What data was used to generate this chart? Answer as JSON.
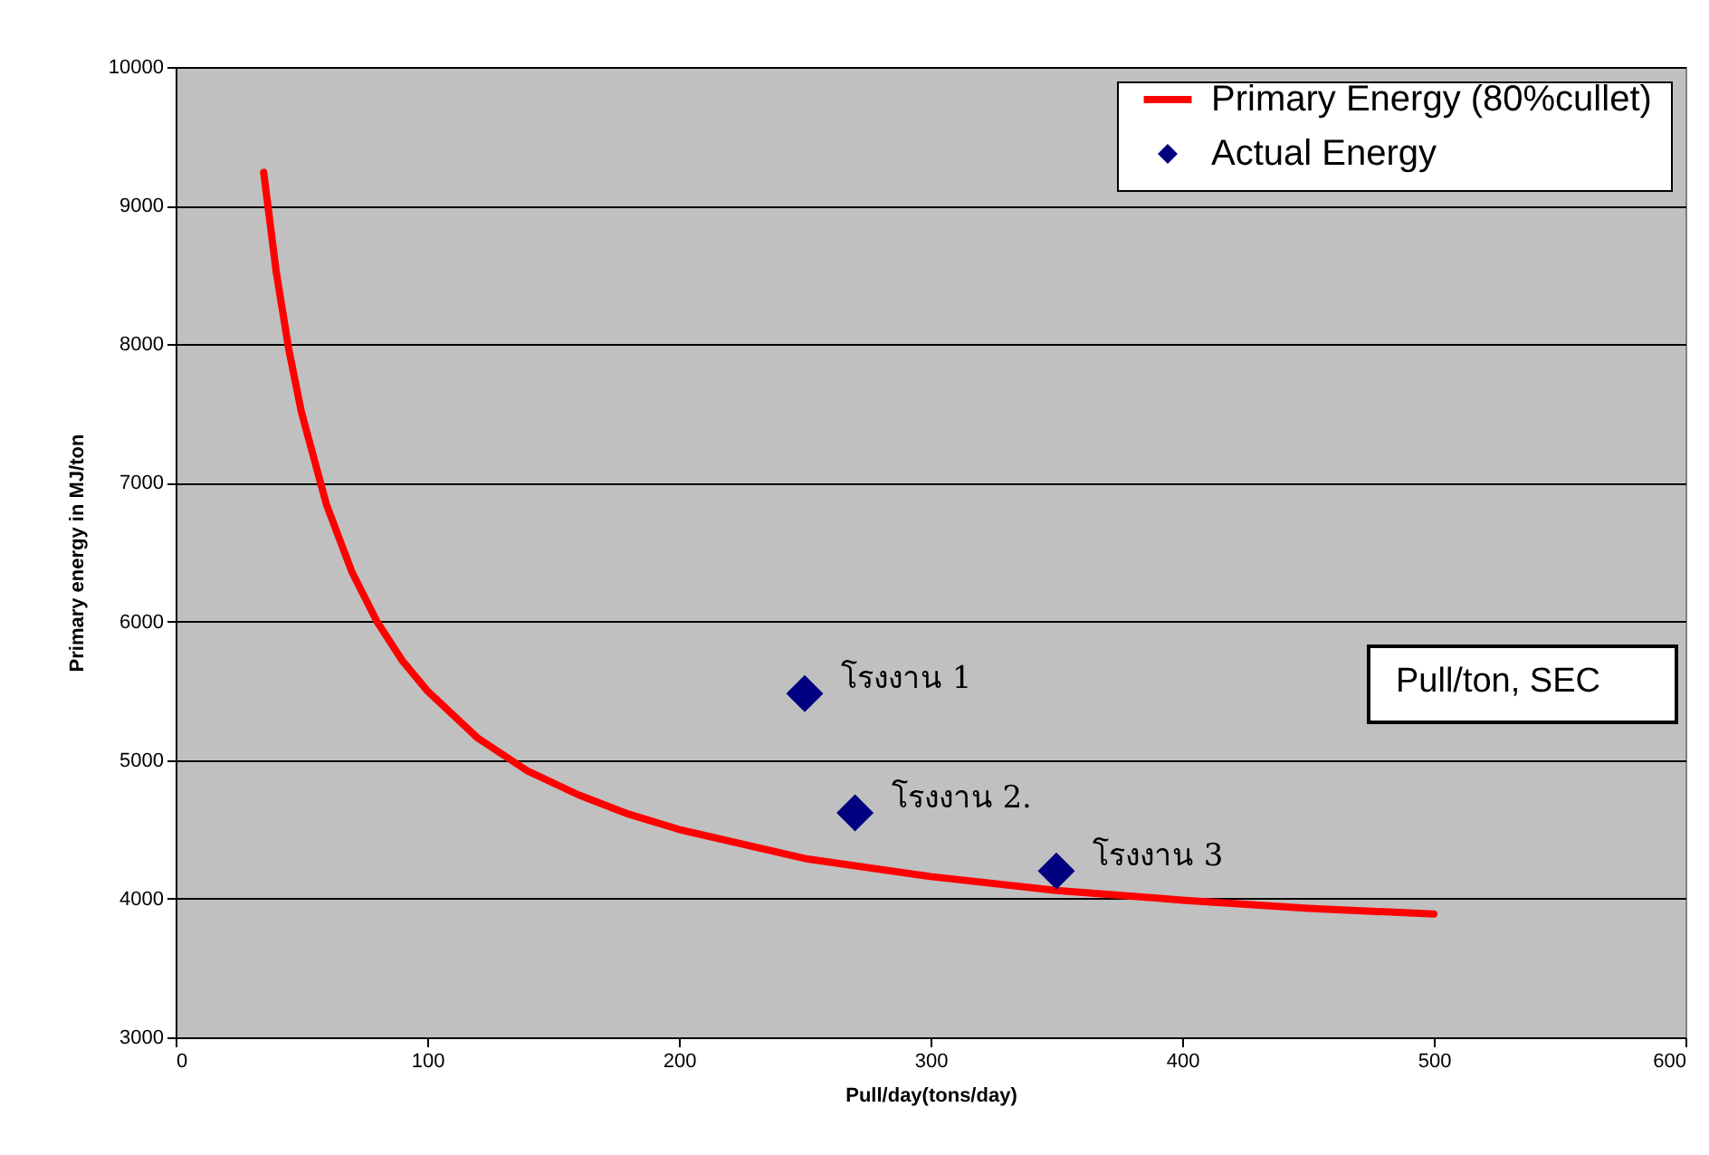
{
  "chart_data": {
    "type": "line",
    "xlabel": "Pull/day(tons/day)",
    "ylabel": "Primary energy in MJ/ton",
    "xlim": [
      0,
      600
    ],
    "xticks": [
      0,
      100,
      200,
      300,
      400,
      500,
      600
    ],
    "ylim": [
      3000,
      10000
    ],
    "yticks": [
      3000,
      4000,
      5000,
      6000,
      7000,
      8000,
      9000,
      10000
    ],
    "grid": "y",
    "legend": "top right",
    "series": [
      {
        "name": "Primary Energy (80%cullet)",
        "color": "#ff0000",
        "x": [
          35,
          40,
          45,
          50,
          60,
          70,
          80,
          90,
          100,
          120,
          140,
          160,
          180,
          200,
          250,
          300,
          350,
          400,
          450,
          500
        ],
        "values": [
          9240,
          8520,
          7960,
          7510,
          6840,
          6360,
          6000,
          5720,
          5500,
          5160,
          4920,
          4750,
          4610,
          4500,
          4290,
          4160,
          4060,
          3990,
          3930,
          3890
        ]
      },
      {
        "name": "Actual Energy",
        "type": "scatter",
        "marker": "diamond",
        "color": "#000080",
        "x": [
          250,
          270,
          350
        ],
        "values": [
          5480,
          4620,
          4200
        ]
      }
    ],
    "annotations": [
      {
        "text": "โรงงาน 1",
        "x": 250,
        "y": 5480
      },
      {
        "text": "โรงงาน 2.",
        "x": 270,
        "y": 4620
      },
      {
        "text": "โรงงาน 3",
        "x": 350,
        "y": 4200
      },
      "Pull/ton, SEC"
    ]
  }
}
